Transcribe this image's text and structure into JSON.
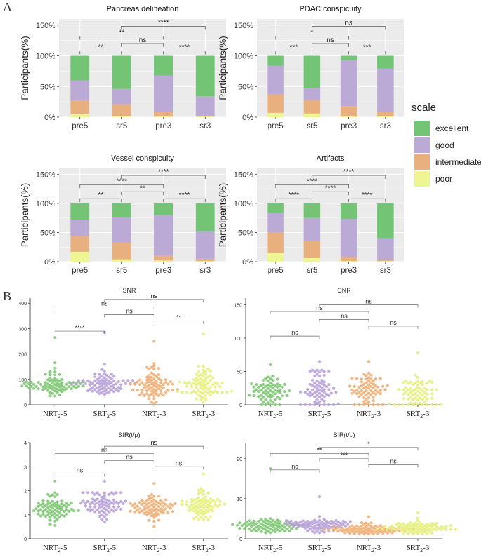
{
  "panel_labels": {
    "a": "A",
    "b": "B"
  },
  "colors": {
    "excellent": "#74c476",
    "good": "#bcaad6",
    "intermediate": "#e8b07e",
    "poor": "#eef593",
    "plot_bg": "#ebebeb",
    "grid": "#ffffff",
    "dot_nrt5": "#7dc872",
    "dot_srt5": "#b7a1d8",
    "dot_nrt3": "#f0ae73",
    "dot_srt3": "#e6f07b"
  },
  "legend": {
    "title": "scale",
    "items": [
      "excellent",
      "good",
      "intermediate",
      "poor"
    ]
  },
  "chart_data": [
    {
      "type": "bar",
      "stacked": true,
      "title": "Pancreas delineation",
      "ylabel": "Participants(%)",
      "yticks": [
        "0%",
        "50%",
        "100%",
        "150%"
      ],
      "ylim": [
        0,
        160
      ],
      "categories": [
        "pre5",
        "sr5",
        "pre3",
        "sr3"
      ],
      "series": [
        {
          "name": "poor",
          "values": [
            5,
            2,
            1,
            1
          ]
        },
        {
          "name": "intermediate",
          "values": [
            22,
            19,
            8,
            1
          ]
        },
        {
          "name": "good",
          "values": [
            33,
            25,
            59,
            32
          ]
        },
        {
          "name": "excellent",
          "values": [
            40,
            54,
            32,
            66
          ]
        }
      ],
      "comparisons": [
        {
          "from": 0,
          "to": 1,
          "level": 0,
          "label": "**"
        },
        {
          "from": 1,
          "to": 2,
          "level": 1,
          "label": "ns"
        },
        {
          "from": 2,
          "to": 3,
          "level": 0,
          "label": "****"
        },
        {
          "from": 0,
          "to": 2,
          "level": 2,
          "label": "**"
        },
        {
          "from": 1,
          "to": 3,
          "level": 3,
          "label": "****"
        }
      ]
    },
    {
      "type": "bar",
      "stacked": true,
      "title": "PDAC conspicuity",
      "ylabel": "Participants(%)",
      "yticks": [
        "0%",
        "50%",
        "100%",
        "150%"
      ],
      "ylim": [
        0,
        160
      ],
      "categories": [
        "pre5",
        "sr5",
        "pre3",
        "sr3"
      ],
      "series": [
        {
          "name": "poor",
          "values": [
            7,
            6,
            1,
            2
          ]
        },
        {
          "name": "intermediate",
          "values": [
            30,
            22,
            17,
            7
          ]
        },
        {
          "name": "good",
          "values": [
            47,
            20,
            75,
            70
          ]
        },
        {
          "name": "excellent",
          "values": [
            16,
            52,
            7,
            21
          ]
        }
      ],
      "comparisons": [
        {
          "from": 0,
          "to": 1,
          "level": 0,
          "label": "***"
        },
        {
          "from": 1,
          "to": 2,
          "level": 1,
          "label": "ns"
        },
        {
          "from": 2,
          "to": 3,
          "level": 0,
          "label": "***"
        },
        {
          "from": 0,
          "to": 2,
          "level": 2,
          "label": "*"
        },
        {
          "from": 1,
          "to": 3,
          "level": 3,
          "label": "ns"
        }
      ]
    },
    {
      "type": "bar",
      "stacked": true,
      "title": "Vessel conspicuity",
      "ylabel": "Participants(%)",
      "yticks": [
        "0%",
        "50%",
        "100%",
        "150%"
      ],
      "ylim": [
        0,
        160
      ],
      "categories": [
        "pre5",
        "sr5",
        "pre3",
        "sr3"
      ],
      "series": [
        {
          "name": "poor",
          "values": [
            17,
            4,
            2,
            1
          ]
        },
        {
          "name": "intermediate",
          "values": [
            27,
            29,
            8,
            4
          ]
        },
        {
          "name": "good",
          "values": [
            28,
            43,
            70,
            47
          ]
        },
        {
          "name": "excellent",
          "values": [
            28,
            24,
            20,
            48
          ]
        }
      ],
      "comparisons": [
        {
          "from": 0,
          "to": 1,
          "level": 0,
          "label": "**"
        },
        {
          "from": 1,
          "to": 2,
          "level": 1,
          "label": "**"
        },
        {
          "from": 2,
          "to": 3,
          "level": 0,
          "label": "****"
        },
        {
          "from": 0,
          "to": 2,
          "level": 2,
          "label": "****"
        },
        {
          "from": 1,
          "to": 3,
          "level": 3,
          "label": "****"
        }
      ]
    },
    {
      "type": "bar",
      "stacked": true,
      "title": "Artifacts",
      "ylabel": "Participants(%)",
      "yticks": [
        "0%",
        "50%",
        "100%",
        "150%"
      ],
      "ylim": [
        0,
        160
      ],
      "categories": [
        "pre5",
        "sr5",
        "pre3",
        "sr3"
      ],
      "series": [
        {
          "name": "poor",
          "values": [
            15,
            6,
            1,
            1
          ]
        },
        {
          "name": "intermediate",
          "values": [
            35,
            29,
            7,
            2
          ]
        },
        {
          "name": "good",
          "values": [
            33,
            40,
            65,
            37
          ]
        },
        {
          "name": "excellent",
          "values": [
            17,
            25,
            27,
            60
          ]
        }
      ],
      "comparisons": [
        {
          "from": 0,
          "to": 1,
          "level": 0,
          "label": "****"
        },
        {
          "from": 1,
          "to": 2,
          "level": 1,
          "label": "****"
        },
        {
          "from": 2,
          "to": 3,
          "level": 0,
          "label": "****"
        },
        {
          "from": 0,
          "to": 2,
          "level": 2,
          "label": "****"
        },
        {
          "from": 1,
          "to": 3,
          "level": 3,
          "label": "****"
        }
      ]
    },
    {
      "type": "scatter",
      "subtype": "beeswarm",
      "title": "SNR",
      "ylim": [
        0,
        420
      ],
      "yticks": [
        0,
        100,
        200,
        300,
        400
      ],
      "categories": [
        "NRT₂-5",
        "SRT₂-5",
        "NRT₂-3",
        "SRT₂-3"
      ],
      "n_points": 80,
      "groups": [
        {
          "median": 80,
          "spread": 22,
          "min": 5,
          "max": 265
        },
        {
          "median": 80,
          "spread": 24,
          "min": 8,
          "max": 285
        },
        {
          "median": 70,
          "spread": 40,
          "min": 5,
          "max": 250
        },
        {
          "median": 82,
          "spread": 38,
          "min": 10,
          "max": 280
        }
      ],
      "comparisons": [
        {
          "from": 0,
          "to": 1,
          "y": 290,
          "label": "****"
        },
        {
          "from": 2,
          "to": 3,
          "y": 330,
          "label": "**"
        },
        {
          "from": 1,
          "to": 2,
          "y": 355,
          "label": "ns"
        },
        {
          "from": 0,
          "to": 2,
          "y": 385,
          "label": "ns"
        },
        {
          "from": 1,
          "to": 3,
          "y": 415,
          "label": "ns"
        }
      ]
    },
    {
      "type": "scatter",
      "subtype": "beeswarm",
      "title": "CNR",
      "ylim": [
        0,
        160
      ],
      "yticks": [
        0,
        50,
        100,
        150
      ],
      "categories": [
        "NRT₂-5",
        "SRT₂-5",
        "NRT₂-3",
        "SRT₂-3"
      ],
      "n_points": 70,
      "groups": [
        {
          "median": 22,
          "spread": 12,
          "min": 0,
          "max": 60
        },
        {
          "median": 25,
          "spread": 14,
          "min": 0,
          "max": 65
        },
        {
          "median": 22,
          "spread": 14,
          "min": 0,
          "max": 65
        },
        {
          "median": 18,
          "spread": 14,
          "min": 0,
          "max": 78
        }
      ],
      "comparisons": [
        {
          "from": 0,
          "to": 1,
          "y": 103,
          "label": "ns"
        },
        {
          "from": 2,
          "to": 3,
          "y": 118,
          "label": "ns"
        },
        {
          "from": 1,
          "to": 2,
          "y": 128,
          "label": "ns"
        },
        {
          "from": 0,
          "to": 2,
          "y": 140,
          "label": "ns"
        },
        {
          "from": 1,
          "to": 3,
          "y": 150,
          "label": "ns"
        }
      ]
    },
    {
      "type": "scatter",
      "subtype": "beeswarm",
      "title": "SIR(t/p)",
      "ylim": [
        0,
        4
      ],
      "yticks": [
        0,
        1,
        2,
        3,
        4
      ],
      "categories": [
        "NRT₂-5",
        "SRT₂-5",
        "NRT₂-3",
        "SRT₂-3"
      ],
      "n_points": 75,
      "groups": [
        {
          "median": 1.25,
          "spread": 0.3,
          "min": 0.5,
          "max": 2.4
        },
        {
          "median": 1.4,
          "spread": 0.32,
          "min": 0.7,
          "max": 2.4
        },
        {
          "median": 1.3,
          "spread": 0.3,
          "min": 0.5,
          "max": 2.3
        },
        {
          "median": 1.4,
          "spread": 0.3,
          "min": 0.8,
          "max": 2.7
        }
      ],
      "comparisons": [
        {
          "from": 0,
          "to": 1,
          "y": 2.7,
          "label": "ns"
        },
        {
          "from": 2,
          "to": 3,
          "y": 3.0,
          "label": "ns"
        },
        {
          "from": 1,
          "to": 2,
          "y": 3.25,
          "label": "ns"
        },
        {
          "from": 0,
          "to": 2,
          "y": 3.55,
          "label": "ns"
        },
        {
          "from": 1,
          "to": 3,
          "y": 3.85,
          "label": "ns"
        }
      ]
    },
    {
      "type": "scatter",
      "subtype": "beeswarm",
      "title": "SIR(t/b)",
      "ylim": [
        0,
        24
      ],
      "yticks": [
        0,
        10,
        20
      ],
      "categories": [
        "NRT₂-5",
        "SRT₂-5",
        "NRT₂-3",
        "SRT₂-3"
      ],
      "n_points": 80,
      "groups": [
        {
          "median": 3.2,
          "spread": 1.0,
          "min": 1.5,
          "max": 17.5
        },
        {
          "median": 3.3,
          "spread": 1.0,
          "min": 1.5,
          "max": 10.5
        },
        {
          "median": 2.4,
          "spread": 0.7,
          "min": 1.2,
          "max": 5.5
        },
        {
          "median": 2.7,
          "spread": 0.9,
          "min": 1.3,
          "max": 6.5
        }
      ],
      "comparisons": [
        {
          "from": 0,
          "to": 1,
          "y": 17.2,
          "label": "ns"
        },
        {
          "from": 2,
          "to": 3,
          "y": 18.5,
          "label": "ns"
        },
        {
          "from": 1,
          "to": 2,
          "y": 20.0,
          "label": "***"
        },
        {
          "from": 0,
          "to": 2,
          "y": 21.3,
          "label": "**"
        },
        {
          "from": 1,
          "to": 3,
          "y": 22.8,
          "label": "*"
        }
      ]
    }
  ]
}
